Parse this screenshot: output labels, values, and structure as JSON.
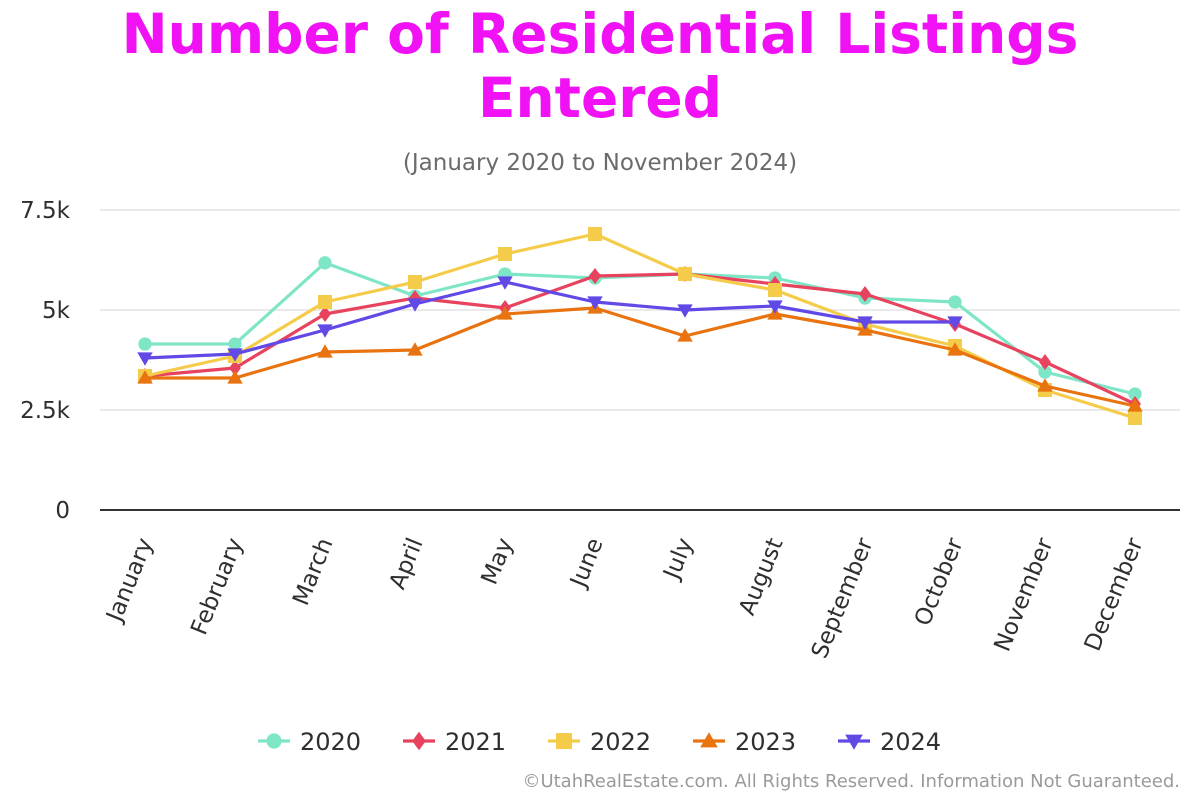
{
  "chart_data": {
    "type": "line",
    "title": "Number of Residential Listings Entered",
    "subtitle": "(January 2020 to November 2024)",
    "xlabel": "",
    "ylabel": "",
    "ylim": [
      0,
      7500
    ],
    "yticks": [
      0,
      2500,
      5000,
      7500
    ],
    "ytick_labels": [
      "0",
      "2.5k",
      "5k",
      "7.5k"
    ],
    "categories": [
      "January",
      "February",
      "March",
      "April",
      "May",
      "June",
      "July",
      "August",
      "September",
      "October",
      "November",
      "December"
    ],
    "series": [
      {
        "name": "2020",
        "color": "#7ee6c6",
        "marker": "circle",
        "values": [
          4150,
          4150,
          6180,
          5350,
          5900,
          5800,
          5900,
          5800,
          5300,
          5200,
          3450,
          2900
        ]
      },
      {
        "name": "2021",
        "color": "#e8435e",
        "marker": "diamond",
        "values": [
          3350,
          3550,
          4900,
          5300,
          5050,
          5850,
          5900,
          5650,
          5400,
          4650,
          3700,
          2650
        ]
      },
      {
        "name": "2022",
        "color": "#f5cc4a",
        "marker": "square",
        "values": [
          3350,
          3850,
          5200,
          5700,
          6400,
          6900,
          5900,
          5500,
          4650,
          4100,
          3000,
          2300
        ]
      },
      {
        "name": "2023",
        "color": "#e8730f",
        "marker": "triangle-up",
        "values": [
          3300,
          3300,
          3950,
          4000,
          4900,
          5050,
          4350,
          4900,
          4500,
          4000,
          3100,
          2600
        ]
      },
      {
        "name": "2024",
        "color": "#6149e6",
        "marker": "triangle-down",
        "values": [
          3800,
          3900,
          4500,
          5150,
          5700,
          5200,
          5000,
          5100,
          4700,
          4700,
          null,
          null
        ]
      }
    ],
    "grid": true,
    "legend_position": "bottom-center"
  },
  "footer": {
    "credit": "©UtahRealEstate.com. All Rights Reserved. Information Not Guaranteed."
  }
}
